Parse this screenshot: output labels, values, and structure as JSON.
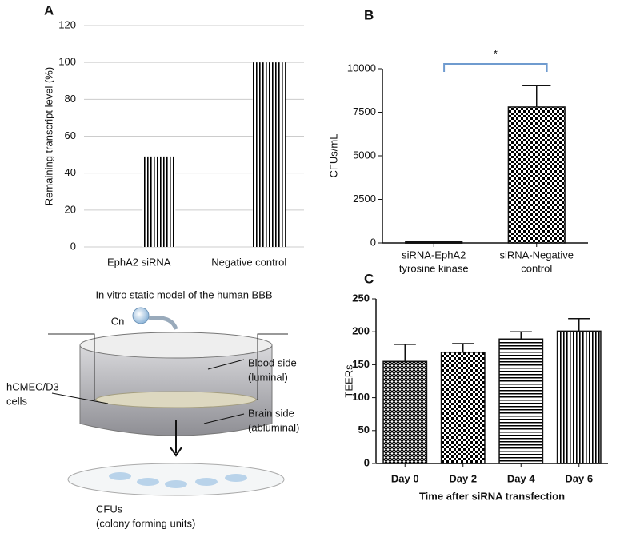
{
  "chart_data": [
    {
      "type": "bar",
      "panel_label": "A",
      "y_label": "Remaining transcript level (%)",
      "categories": [
        "EphA2 siRNA",
        "Negative control"
      ],
      "values": [
        49,
        100
      ],
      "ylim": [
        0,
        120
      ],
      "yticks": [
        0,
        20,
        40,
        60,
        80,
        100,
        120
      ],
      "grid": true,
      "pattern": "vertical",
      "color": "#8c8c8c"
    },
    {
      "type": "bar",
      "panel_label": "B",
      "y_label": "CFUs/mL",
      "categories": [
        [
          "siRNA-EphA2",
          "tyrosine kinase"
        ],
        [
          "siRNA-Negative",
          "control"
        ]
      ],
      "values": [
        60,
        7800
      ],
      "errors": [
        20,
        1250
      ],
      "ylim": [
        0,
        10000
      ],
      "yticks": [
        0,
        2500,
        5000,
        7500,
        10000
      ],
      "grid": false,
      "pattern": "checker",
      "color": "#111111",
      "annotation": "*"
    },
    {
      "type": "bar",
      "panel_label": "C",
      "y_label": "TEERs",
      "x_label": "Time after siRNA transfection",
      "categories": [
        "Day 0",
        "Day 2",
        "Day 4",
        "Day 6"
      ],
      "values": [
        155,
        169,
        189,
        201
      ],
      "errors": [
        26,
        13,
        11,
        19
      ],
      "ylim": [
        0,
        250
      ],
      "yticks": [
        0,
        50,
        100,
        150,
        200,
        250
      ],
      "grid": false,
      "pattern": [
        "crosshatch",
        "checker",
        "horizontal",
        "vertical"
      ],
      "color": "#111111"
    }
  ],
  "diagram": {
    "title": "In vitro static model of the human BBB",
    "pathogen": "Cn",
    "blood_side": [
      "Blood side",
      "(luminal)"
    ],
    "cells": [
      "hCMEC/D3",
      "cells"
    ],
    "brain_side": [
      "Brain side",
      "(abluminal)"
    ],
    "cfus": [
      "CFUs",
      "(colony forming units)"
    ]
  }
}
